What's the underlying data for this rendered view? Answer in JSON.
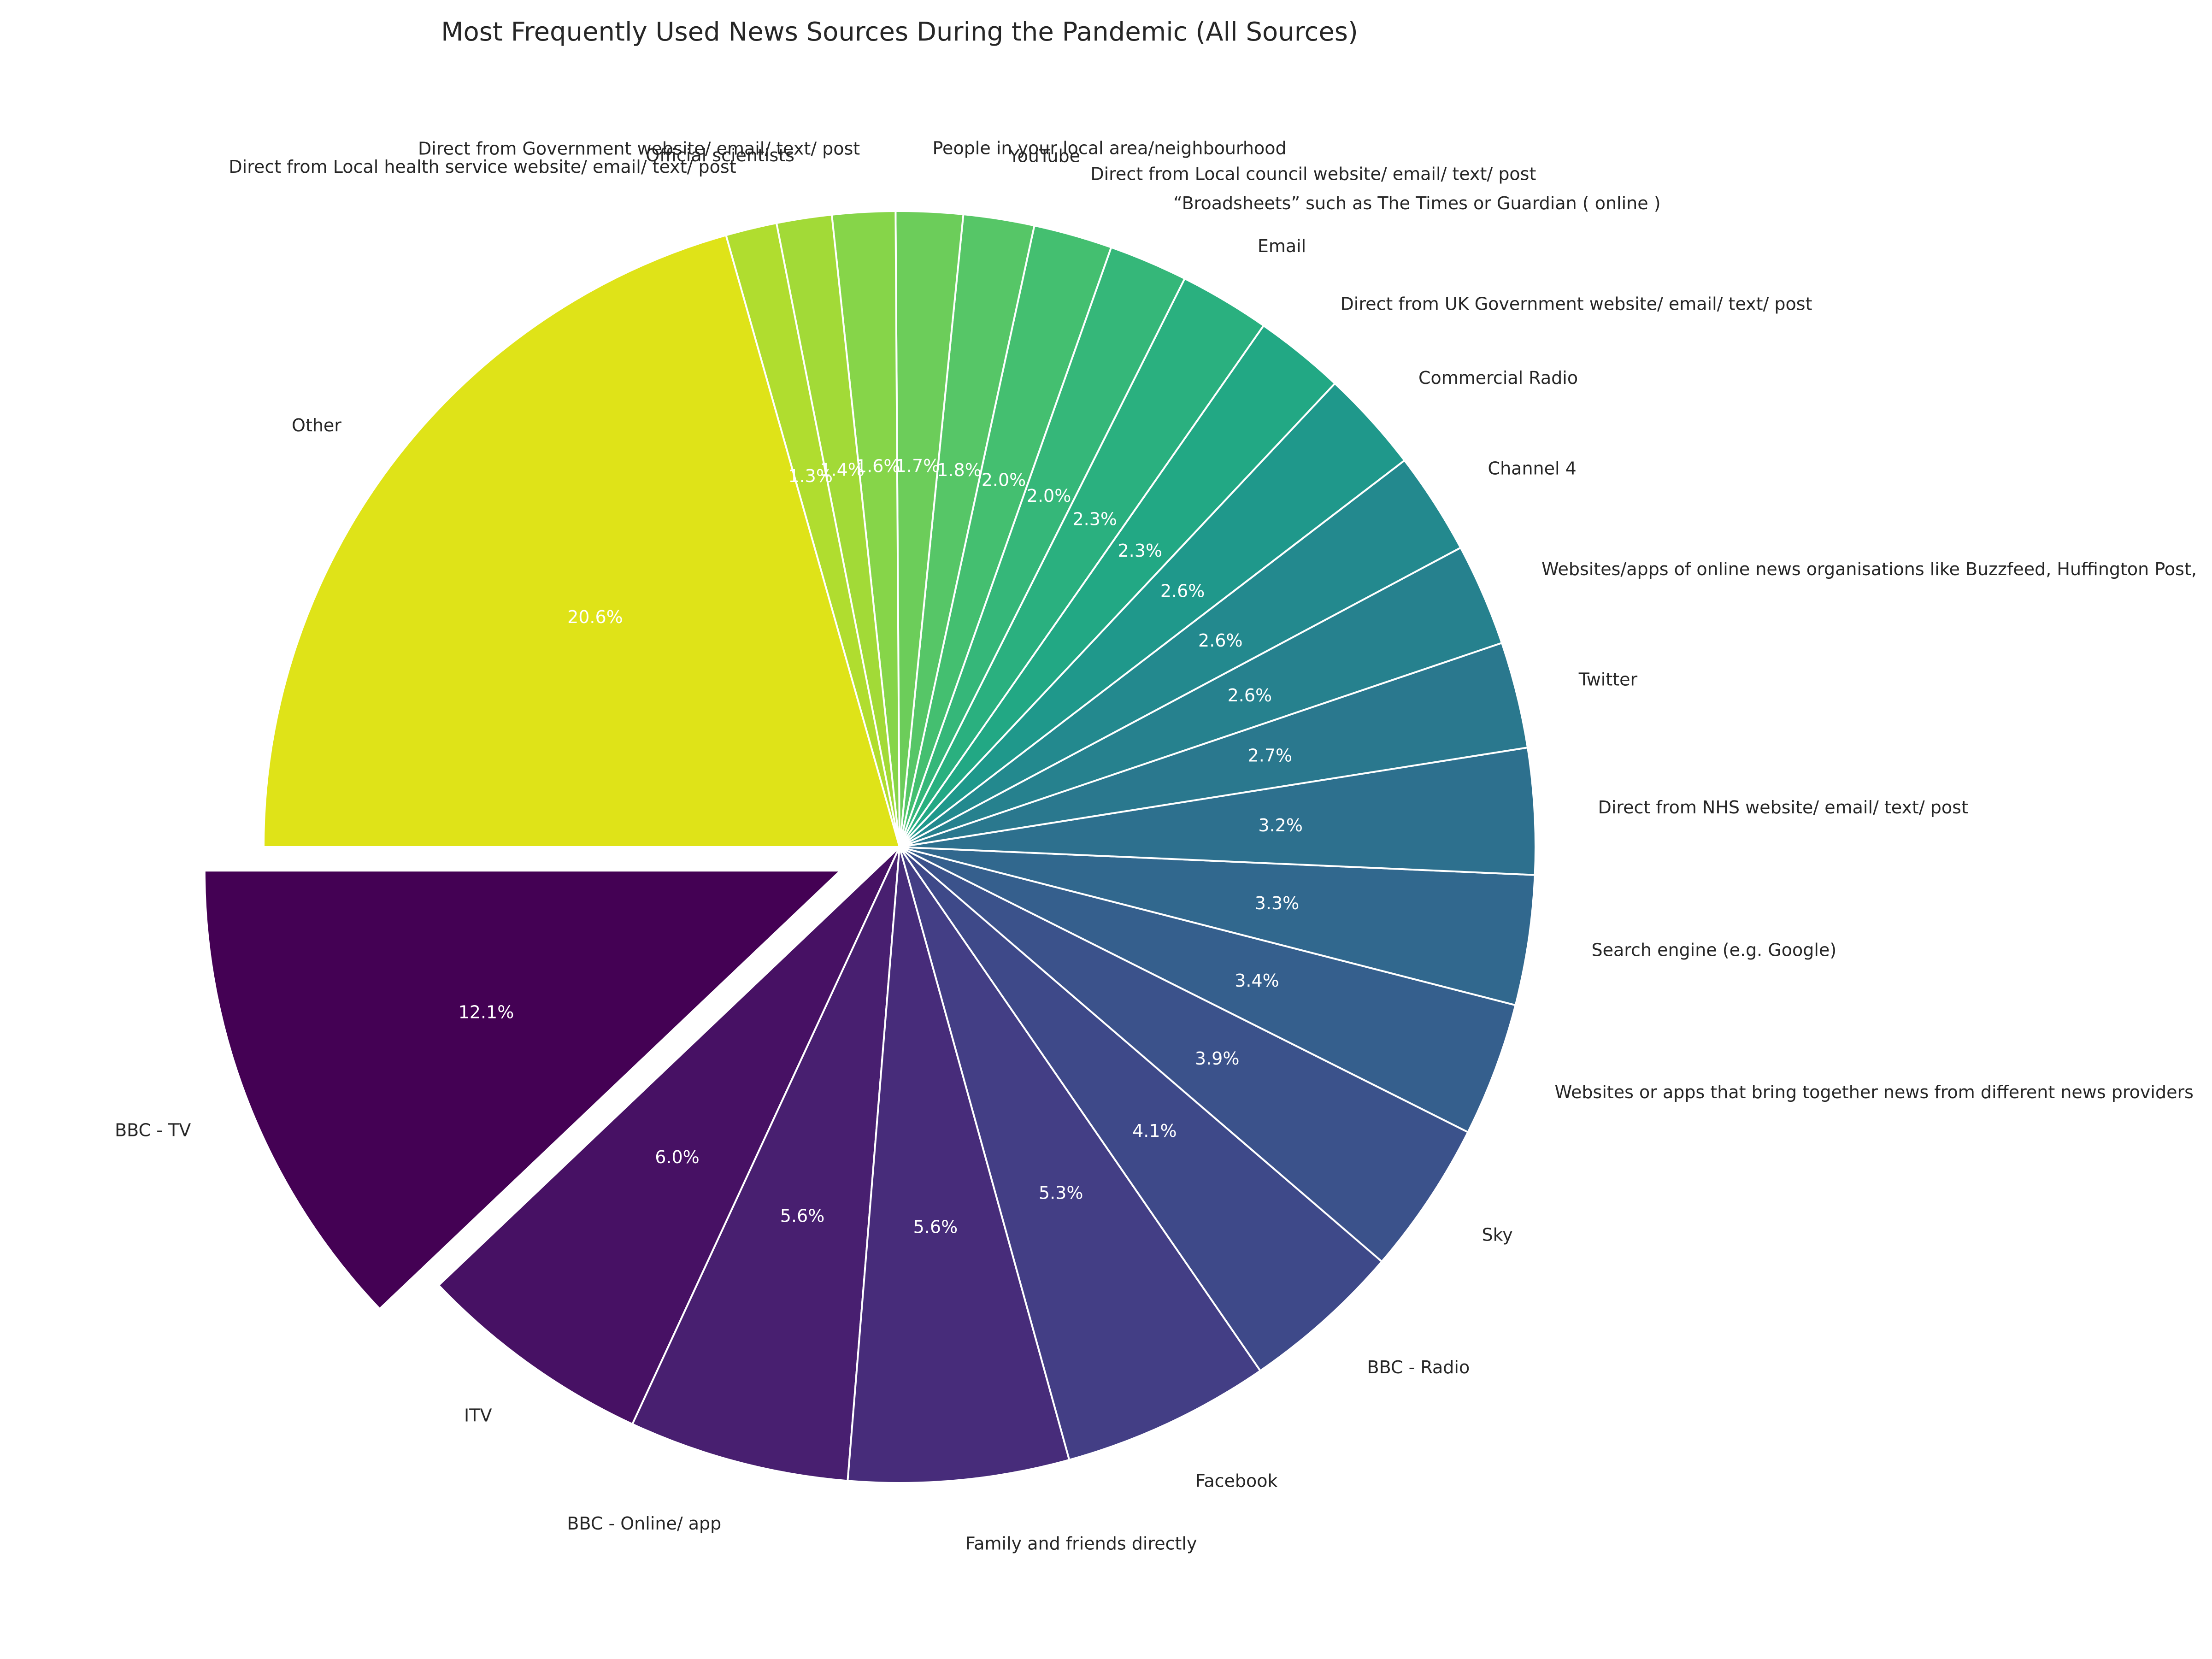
{
  "chart_data": {
    "type": "pie",
    "title": "Most Frequently Used News Sources During the Pandemic (All Sources)",
    "value_format": "percent_1dp",
    "start_angle_deg": 180,
    "direction": "counterclockwise",
    "exploded_slice": "BBC - TV",
    "slices": [
      {
        "label": "BBC - TV",
        "value": 12.1,
        "pct_text": "12.1%",
        "color": "#440154"
      },
      {
        "label": "ITV",
        "value": 6.0,
        "pct_text": "6.0%",
        "color": "#471164"
      },
      {
        "label": "BBC - Online/ app",
        "value": 5.6,
        "pct_text": "5.6%",
        "color": "#481f70"
      },
      {
        "label": "Family and friends directly",
        "value": 5.6,
        "pct_text": "5.6%",
        "color": "#472c7a"
      },
      {
        "label": "Facebook",
        "value": 5.3,
        "pct_text": "5.3%",
        "color": "#433e85"
      },
      {
        "label": "BBC - Radio",
        "value": 4.1,
        "pct_text": "4.1%",
        "color": "#3e4989"
      },
      {
        "label": "Sky",
        "value": 3.9,
        "pct_text": "3.9%",
        "color": "#3b528b"
      },
      {
        "label": "Websites or apps that bring together news from different news providers",
        "value": 3.4,
        "pct_text": "3.4%",
        "color": "#355f8d"
      },
      {
        "label": "Search engine (e.g. Google)",
        "value": 3.3,
        "pct_text": "3.3%",
        "color": "#31688e"
      },
      {
        "label": "Direct from NHS website/ email/ text/ post",
        "value": 3.2,
        "pct_text": "3.2%",
        "color": "#2d708e"
      },
      {
        "label": "Twitter",
        "value": 2.7,
        "pct_text": "2.7%",
        "color": "#2a788e"
      },
      {
        "label": "Websites/apps of online news organisations like Buzzfeed, Huffington Post,",
        "value": 2.6,
        "pct_text": "2.6%",
        "color": "#26818e"
      },
      {
        "label": "Channel 4",
        "value": 2.6,
        "pct_text": "2.6%",
        "color": "#23898e"
      },
      {
        "label": "Commercial Radio",
        "value": 2.6,
        "pct_text": "2.6%",
        "color": "#1f988b"
      },
      {
        "label": "Direct from UK Government website/ email/ text/ post",
        "value": 2.3,
        "pct_text": "2.3%",
        "color": "#22a884"
      },
      {
        "label": "Email",
        "value": 2.3,
        "pct_text": "2.3%",
        "color": "#2ab07f"
      },
      {
        "label": "“Broadsheets” such as The Times or Guardian ( online )",
        "value": 2.0,
        "pct_text": "2.0%",
        "color": "#35b779"
      },
      {
        "label": "Direct from Local council website/ email/ text/ post",
        "value": 2.0,
        "pct_text": "2.0%",
        "color": "#44bf70"
      },
      {
        "label": "YouTube",
        "value": 1.8,
        "pct_text": "1.8%",
        "color": "#56c667"
      },
      {
        "label": "People in your local area/neighbourhood",
        "value": 1.7,
        "pct_text": "1.7%",
        "color": "#6ccd5a"
      },
      {
        "label": "Direct from Government website/ email/ text/ post",
        "value": 1.6,
        "pct_text": "1.6%",
        "color": "#86d549"
      },
      {
        "label": "Official scientists",
        "value": 1.4,
        "pct_text": "1.4%",
        "color": "#a2da37"
      },
      {
        "label": "Direct from Local health service website/ email/ text/ post",
        "value": 1.3,
        "pct_text": "1.3%",
        "color": "#b0dd2f"
      },
      {
        "label": "Other",
        "value": 20.6,
        "pct_text": "20.6%",
        "color": "#dfe318"
      }
    ]
  }
}
